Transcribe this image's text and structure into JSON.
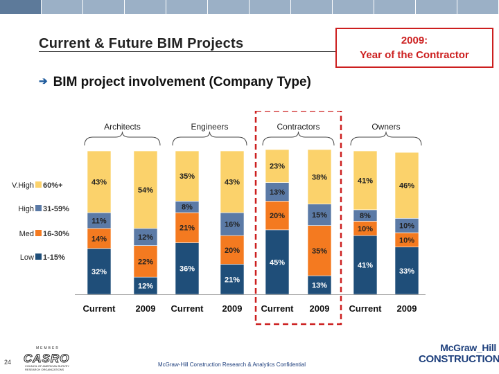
{
  "header": {
    "title": "Current & Future BIM Projects",
    "subtitle": "BIM project involvement (Company Type)",
    "bullet_icon": "arrow-bullet-icon"
  },
  "callout": {
    "line1": "2009:",
    "line2": "Year of the Contractor",
    "color": "#cc1f1f"
  },
  "footer": {
    "page_number": "24",
    "confidential": "McGraw-Hill Construction Research & Analytics Confidential",
    "casro_member": "MEMBER",
    "casro_name": "CASRO",
    "casro_sub": "COUNCIL OF AMERICAN SURVEY RESEARCH ORGANIZATIONS",
    "brand_line1": "McGraw_Hill",
    "brand_line2": "CONSTRUCTION"
  },
  "chart_data": {
    "type": "bar",
    "stacked": true,
    "title": "BIM project involvement (Company Type)",
    "groups": [
      "Architects",
      "Engineers",
      "Contractors",
      "Owners"
    ],
    "categories": [
      "Current",
      "2009",
      "Current",
      "2009",
      "Current",
      "2009",
      "Current",
      "2009"
    ],
    "ylim": [
      0,
      100
    ],
    "series": [
      {
        "name": "1-15%",
        "level": "Low",
        "color": "#1f4e79",
        "values": [
          32,
          12,
          36,
          21,
          45,
          13,
          41,
          33
        ]
      },
      {
        "name": "16-30%",
        "level": "Med",
        "color": "#f47a20",
        "values": [
          14,
          22,
          21,
          20,
          20,
          35,
          10,
          10
        ]
      },
      {
        "name": "31-59%",
        "level": "High",
        "color": "#5b7aa6",
        "values": [
          11,
          12,
          8,
          16,
          13,
          15,
          8,
          10
        ]
      },
      {
        "name": "60%+",
        "level": "V.High",
        "color": "#fbd26b",
        "values": [
          43,
          54,
          35,
          43,
          23,
          38,
          41,
          46
        ]
      }
    ],
    "highlight_group": "Contractors",
    "highlight_color": "#cc1f1f",
    "legend_position": "left"
  }
}
